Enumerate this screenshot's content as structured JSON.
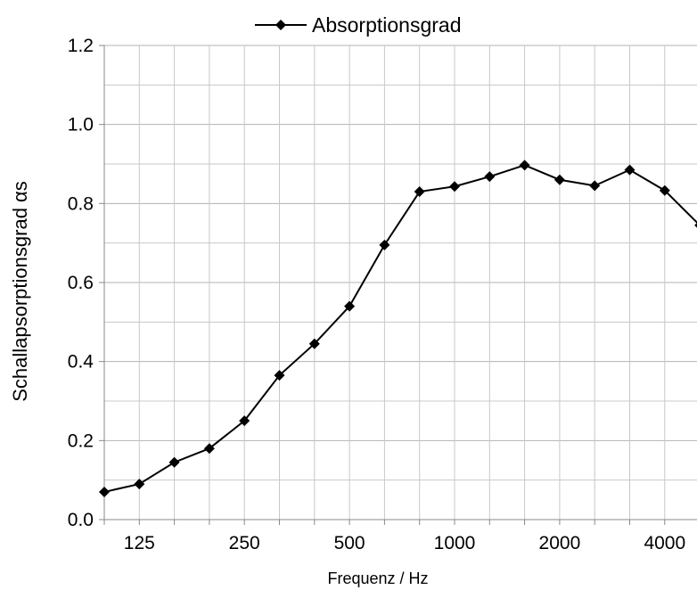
{
  "chart_data": {
    "type": "line",
    "title": "",
    "xlabel": "Frequenz / Hz",
    "ylabel": "Schallapsorptionsgrad αs",
    "x": [
      "100",
      "125",
      "160",
      "200",
      "250",
      "315",
      "400",
      "500",
      "630",
      "800",
      "1000",
      "1250",
      "1600",
      "2000",
      "2500",
      "3150",
      "4000",
      "5000"
    ],
    "x_tick_labels": [
      "125",
      "250",
      "500",
      "1000",
      "2000",
      "4000"
    ],
    "y_tick_labels": [
      "0.0",
      "0.2",
      "0.4",
      "0.6",
      "0.8",
      "1.0",
      "1.2"
    ],
    "ylim": [
      0,
      1.2
    ],
    "grid": true,
    "legend": "top-center",
    "series": [
      {
        "name": "Absorptionsgrad",
        "color": "#000000",
        "marker": "diamond",
        "values": [
          0.07,
          0.09,
          0.145,
          0.18,
          0.25,
          0.365,
          0.445,
          0.54,
          0.695,
          0.83,
          0.843,
          0.868,
          0.897,
          0.86,
          0.845,
          0.885,
          0.833,
          0.745
        ]
      }
    ]
  }
}
